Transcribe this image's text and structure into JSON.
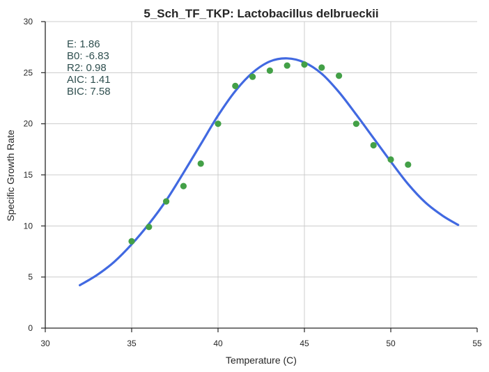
{
  "chart_data": {
    "type": "scatter",
    "title": "5_Sch_TF_TKP: Lactobacillus delbrueckii",
    "xlabel": "Temperature (C)",
    "ylabel": "Specific Growth Rate",
    "xlim": [
      30,
      55
    ],
    "ylim": [
      0,
      30
    ],
    "xticks": [
      30,
      35,
      40,
      45,
      50,
      55
    ],
    "yticks": [
      0,
      5,
      10,
      15,
      20,
      25,
      30
    ],
    "grid": true,
    "points": {
      "color": "#43a047",
      "x": [
        35,
        36,
        37,
        38,
        39,
        40,
        41,
        42,
        43,
        44,
        45,
        46,
        47,
        48,
        49,
        50,
        51
      ],
      "y": [
        8.5,
        9.9,
        12.4,
        13.9,
        16.1,
        20.0,
        23.7,
        24.6,
        25.2,
        25.7,
        25.8,
        25.5,
        24.7,
        20.0,
        17.9,
        16.5,
        16.0
      ]
    },
    "fit_curve": {
      "color": "#4169e1",
      "x": [
        32,
        33,
        34,
        35,
        36,
        37,
        38,
        39,
        40,
        41,
        42,
        43,
        44,
        45,
        46,
        47,
        48,
        49,
        50,
        51,
        52,
        53,
        53.9
      ],
      "y": [
        4.2,
        5.2,
        6.5,
        8.2,
        10.2,
        12.5,
        15.2,
        18.0,
        20.8,
        23.2,
        25.0,
        26.1,
        26.4,
        26.0,
        24.9,
        23.1,
        20.9,
        18.6,
        16.3,
        14.1,
        12.3,
        11.0,
        10.1
      ]
    },
    "annotations": [
      "E:  1.86",
      "B0:  -6.83",
      "R2:  0.98",
      "AIC: 1.41",
      "BIC: 7.58"
    ]
  }
}
